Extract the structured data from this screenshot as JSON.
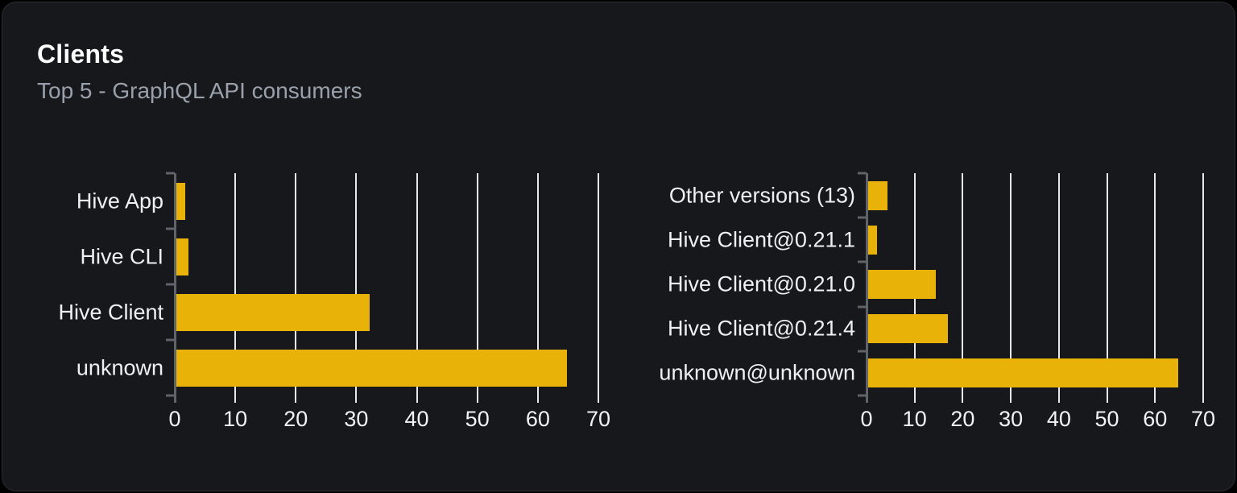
{
  "header": {
    "title": "Clients",
    "subtitle": "Top 5 - GraphQL API consumers"
  },
  "theme": {
    "page_bg": "#000000",
    "card_bg": "#16181c",
    "card_border": "#2b2d33",
    "title_color": "#ffffff",
    "subtitle_color": "#9aa1ab",
    "accent_yellow": "#e9b208"
  },
  "chart_data": [
    {
      "type": "bar",
      "orientation": "horizontal",
      "categories": [
        "Hive App",
        "Hive CLI",
        "Hive Client",
        "unknown"
      ],
      "values": [
        1.5,
        2,
        32,
        64.5
      ],
      "xlim": [
        0,
        70
      ],
      "xticks": [
        0,
        10,
        20,
        30,
        40,
        50,
        60,
        70
      ],
      "grid": true,
      "legend": false,
      "bar_color": "#e9b208",
      "grid_color": "#e5e8ec",
      "axis_color": "#5f646b",
      "label_color": "#eef0f3",
      "tick_label_color": "#f2f3f5"
    },
    {
      "type": "bar",
      "orientation": "horizontal",
      "categories": [
        "Other versions (13)",
        "Hive Client@0.21.1",
        "Hive Client@0.21.0",
        "Hive Client@0.21.4",
        "unknown@unknown"
      ],
      "values": [
        4,
        1.8,
        14,
        16.5,
        64.5
      ],
      "xlim": [
        0,
        70
      ],
      "xticks": [
        0,
        10,
        20,
        30,
        40,
        50,
        60,
        70
      ],
      "grid": true,
      "legend": false,
      "bar_color": "#e9b208",
      "grid_color": "#e5e8ec",
      "axis_color": "#5f646b",
      "label_color": "#eef0f3",
      "tick_label_color": "#f2f3f5"
    }
  ]
}
